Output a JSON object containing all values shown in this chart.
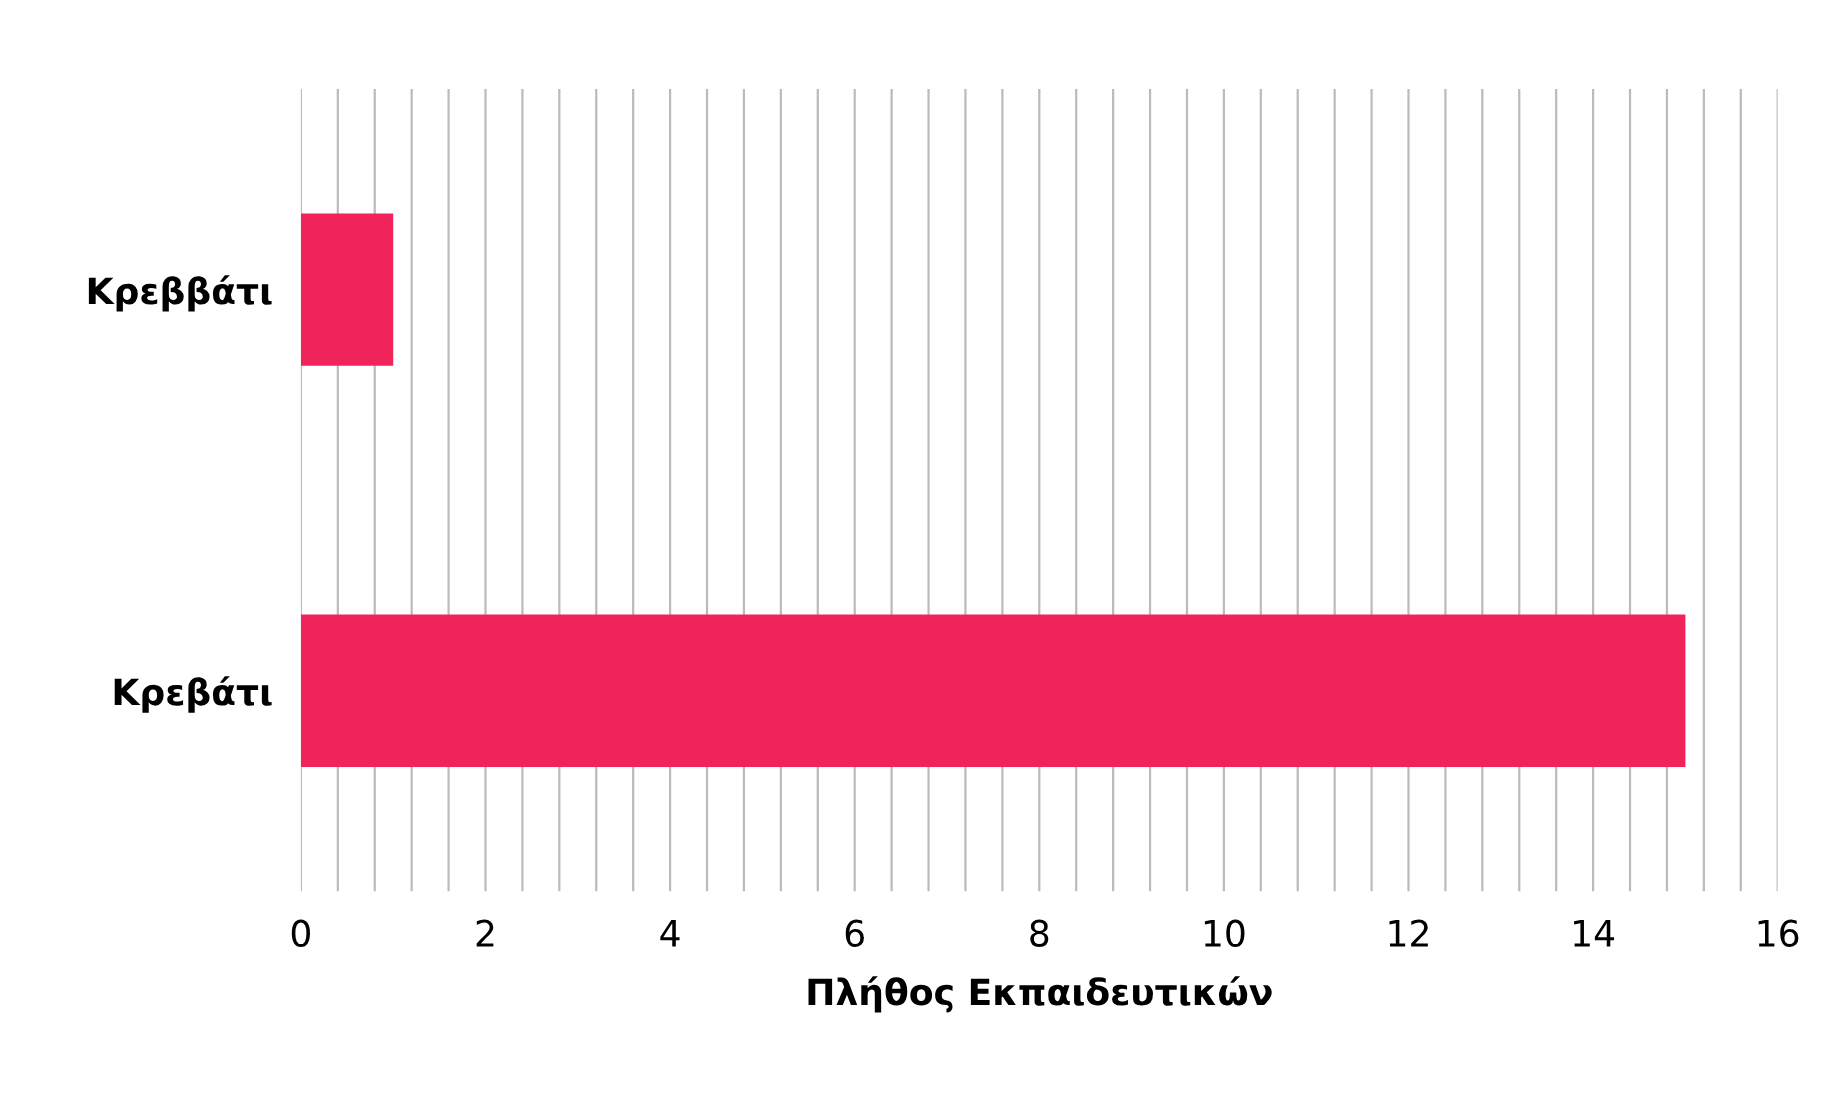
{
  "chart_data": {
    "type": "bar",
    "orientation": "horizontal",
    "xlabel": "Πλήθος Εκπαιδευτικών",
    "categories": [
      "Κρεββάτι",
      "Κρεβάτι"
    ],
    "values": [
      1,
      15
    ],
    "color": "#f0245a",
    "xlim": [
      0,
      16
    ],
    "xticks": [
      0,
      {
        "value": 0.4,
        "label": null
      },
      {
        "value": 0.8,
        "label": null
      },
      {
        "value": 1.2,
        "label": null
      },
      {
        "value": 1.6,
        "label": null
      },
      2,
      {
        "value": 2.4,
        "label": null
      },
      {
        "value": 2.8,
        "label": null
      },
      {
        "value": 3.2,
        "label": null
      },
      {
        "value": 3.6,
        "label": null
      },
      4,
      {
        "value": 4.4,
        "label": null
      },
      {
        "value": 4.8,
        "label": null
      },
      {
        "value": 5.2,
        "label": null
      },
      {
        "value": 5.6,
        "label": null
      },
      6,
      {
        "value": 6.4,
        "label": null
      },
      {
        "value": 6.8,
        "label": null
      },
      {
        "value": 7.2,
        "label": null
      },
      {
        "value": 7.6,
        "label": null
      },
      8,
      {
        "value": 8.4,
        "label": null
      },
      {
        "value": 8.8,
        "label": null
      },
      {
        "value": 9.2,
        "label": null
      },
      {
        "value": 9.6,
        "label": null
      },
      10,
      {
        "value": 10.4,
        "label": null
      },
      {
        "value": 10.8,
        "label": null
      },
      {
        "value": 11.2,
        "label": null
      },
      {
        "value": 11.6,
        "label": null
      },
      12,
      {
        "value": 12.4,
        "label": null
      },
      {
        "value": 12.8,
        "label": null
      },
      {
        "value": 13.2,
        "label": null
      },
      {
        "value": 13.6,
        "label": null
      },
      14,
      {
        "value": 14.4,
        "label": null
      },
      {
        "value": 14.8,
        "label": null
      },
      {
        "value": 15.2,
        "label": null
      },
      {
        "value": 15.6,
        "label": null
      },
      16
    ],
    "grid": "x",
    "legend": false
  }
}
